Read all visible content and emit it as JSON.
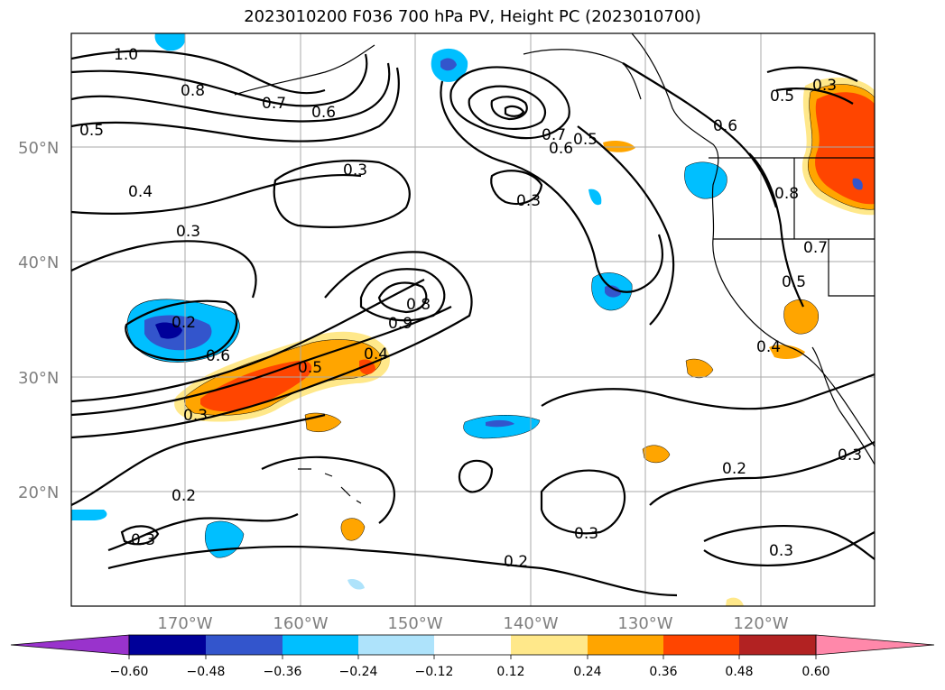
{
  "title": "2023010200 F036 700 hPa PV, Height PC (2023010700)",
  "map": {
    "lat_labels": [
      "50°N",
      "40°N",
      "30°N",
      "20°N"
    ],
    "lon_labels": [
      "170°W",
      "160°W",
      "150°W",
      "140°W",
      "130°W",
      "120°W"
    ],
    "contour_labels": [
      "1.0",
      "0.8",
      "0.7",
      "0.6",
      "0.5",
      "0.4",
      "0.3",
      "0.3",
      "0.2",
      "0.6",
      "0.5",
      "0.4",
      "0.3",
      "0.8",
      "0.9",
      "0.6",
      "0.7",
      "0.5",
      "0.3",
      "0.6",
      "0.5",
      "0.8",
      "0.7",
      "0.5",
      "0.4",
      "0.2",
      "0.3",
      "0.2",
      "0.3",
      "0.2",
      "0.3",
      "0.3",
      "0.3"
    ]
  },
  "colorbar": {
    "ticks": [
      "−0.60",
      "−0.48",
      "−0.36",
      "−0.24",
      "−0.12",
      "0.12",
      "0.24",
      "0.36",
      "0.48",
      "0.60"
    ],
    "colors": [
      "#9933cc",
      "#000099",
      "#3355cc",
      "#00bfff",
      "#aee3fb",
      "#ffffff",
      "#ffe88a",
      "#ffa500",
      "#ff4500",
      "#b22222",
      "#ff88aa"
    ]
  }
}
